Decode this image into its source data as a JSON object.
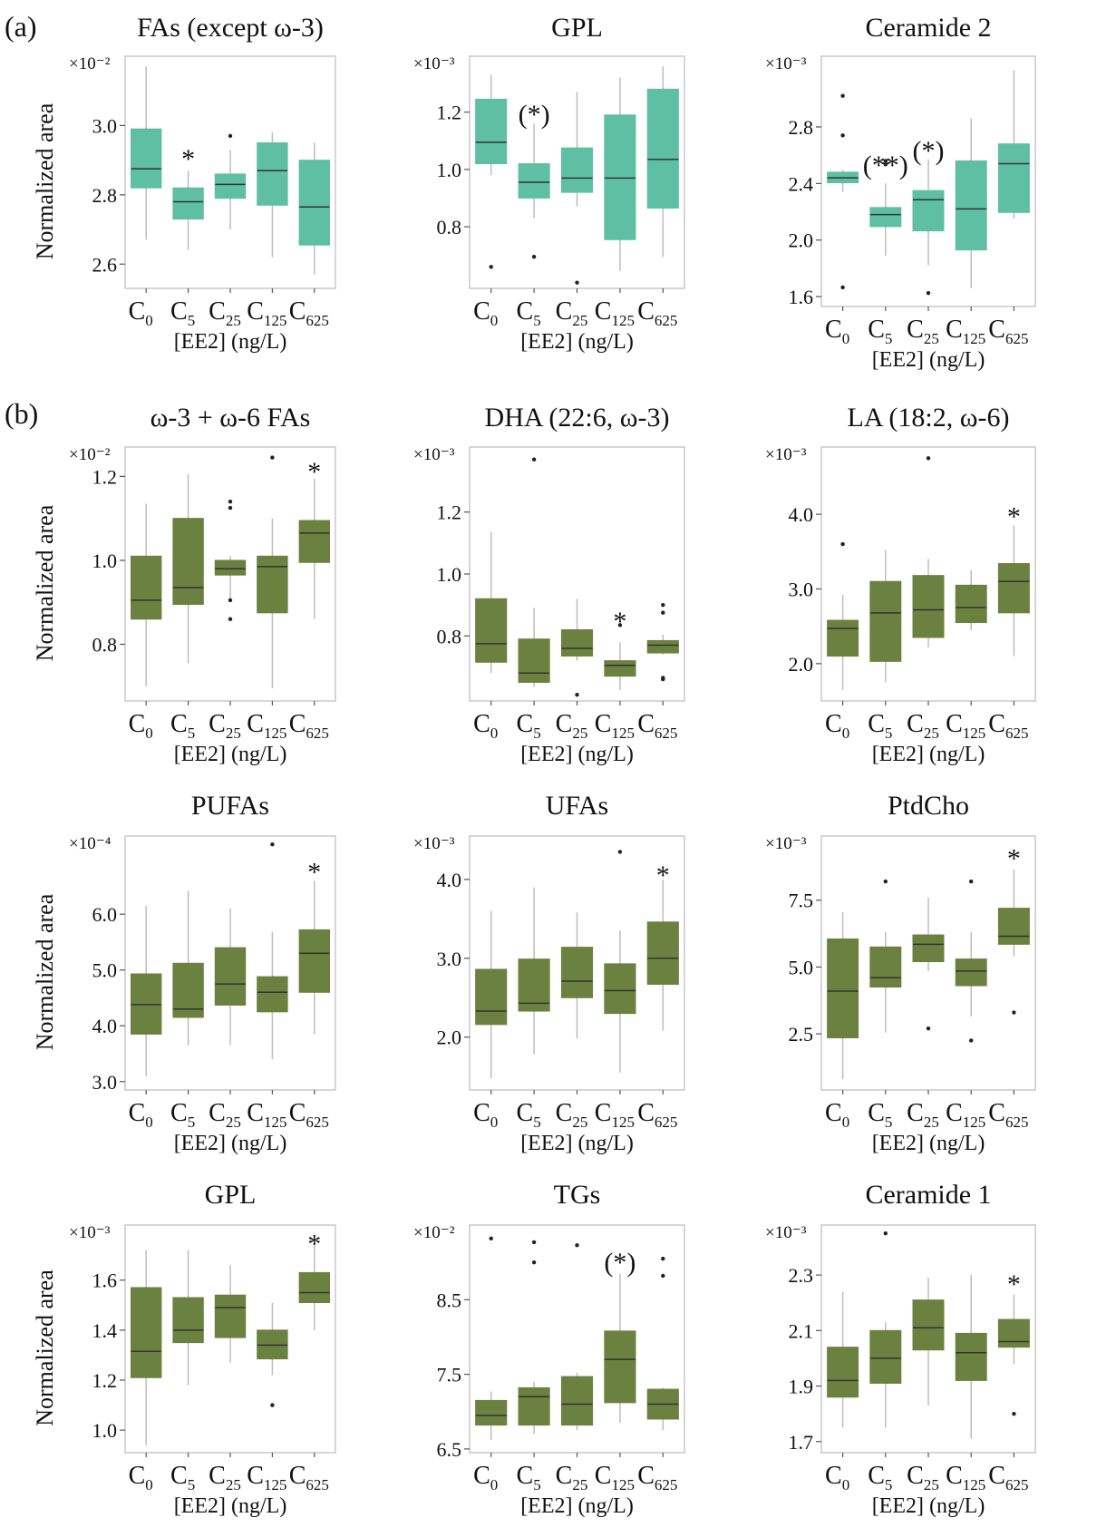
{
  "figure": {
    "panel_labels": [
      "(a)",
      "(b)"
    ]
  },
  "style": {
    "color_a": "#5fbfa3",
    "color_b": "#6b8140",
    "whisker": "#bdbdbd",
    "frame": "#c8c8c8",
    "median": "#333333"
  },
  "chart_data": [
    {
      "type": "box",
      "panel": "(a)",
      "title": "FAs (except ω-3)",
      "exponent": "×10⁻²",
      "ylabel": "Normalized area",
      "xlabel": "[EE2] (ng/L)",
      "categories": [
        "C0",
        "C5",
        "C25",
        "C125",
        "C625"
      ],
      "yticks": [
        "2.6",
        "2.8",
        "3.0"
      ],
      "ytick_values": [
        2.6,
        2.8,
        3.0
      ],
      "ylim": [
        2.53,
        3.2
      ],
      "boxes": [
        {
          "whisker_low": 2.67,
          "q1": 2.82,
          "median": 2.875,
          "q3": 2.99,
          "whisker_high": 3.17,
          "outliers": []
        },
        {
          "whisker_low": 2.64,
          "q1": 2.73,
          "median": 2.78,
          "q3": 2.82,
          "whisker_high": 2.87,
          "outliers": []
        },
        {
          "whisker_low": 2.7,
          "q1": 2.79,
          "median": 2.83,
          "q3": 2.86,
          "whisker_high": 2.93,
          "outliers": [
            2.97
          ]
        },
        {
          "whisker_low": 2.62,
          "q1": 2.77,
          "median": 2.87,
          "q3": 2.95,
          "whisker_high": 2.98,
          "outliers": []
        },
        {
          "whisker_low": 2.57,
          "q1": 2.655,
          "median": 2.765,
          "q3": 2.9,
          "whisker_high": 2.95,
          "outliers": []
        }
      ],
      "annotations": [
        {
          "category": 1,
          "text": "*",
          "y": 2.915
        }
      ]
    },
    {
      "type": "box",
      "panel": "(a)",
      "title": "GPL",
      "exponent": "×10⁻³",
      "ylabel": "",
      "xlabel": "[EE2] (ng/L)",
      "categories": [
        "C0",
        "C5",
        "C25",
        "C125",
        "C625"
      ],
      "yticks": [
        "0.8",
        "1.0",
        "1.2"
      ],
      "ytick_values": [
        0.8,
        1.0,
        1.2
      ],
      "ylim": [
        0.585,
        1.395
      ],
      "boxes": [
        {
          "whisker_low": 0.98,
          "q1": 1.02,
          "median": 1.095,
          "q3": 1.245,
          "whisker_high": 1.33,
          "outliers": [
            0.66
          ]
        },
        {
          "whisker_low": 0.83,
          "q1": 0.9,
          "median": 0.955,
          "q3": 1.02,
          "whisker_high": 1.16,
          "outliers": [
            0.695
          ]
        },
        {
          "whisker_low": 0.87,
          "q1": 0.92,
          "median": 0.97,
          "q3": 1.075,
          "whisker_high": 1.27,
          "outliers": [
            0.605
          ]
        },
        {
          "whisker_low": 0.645,
          "q1": 0.755,
          "median": 0.97,
          "q3": 1.19,
          "whisker_high": 1.32,
          "outliers": []
        },
        {
          "whisker_low": 0.695,
          "q1": 0.865,
          "median": 1.035,
          "q3": 1.28,
          "whisker_high": 1.36,
          "outliers": []
        }
      ],
      "annotations": [
        {
          "category": 1,
          "text": "(*)",
          "y": 1.205
        }
      ]
    },
    {
      "type": "box",
      "panel": "(a)",
      "title": "Ceramide 2",
      "exponent": "×10⁻³",
      "ylabel": "",
      "xlabel": "[EE2] (ng/L)",
      "categories": [
        "C0",
        "C5",
        "C25",
        "C125",
        "C625"
      ],
      "yticks": [
        "1.6",
        "2.0",
        "2.4",
        "2.8"
      ],
      "ytick_values": [
        1.6,
        2.0,
        2.4,
        2.8
      ],
      "ylim": [
        1.53,
        3.3
      ],
      "boxes": [
        {
          "whisker_low": 2.34,
          "q1": 2.405,
          "median": 2.44,
          "q3": 2.48,
          "whisker_high": 2.5,
          "outliers": [
            3.02,
            2.74,
            1.665
          ]
        },
        {
          "whisker_low": 1.89,
          "q1": 2.095,
          "median": 2.18,
          "q3": 2.23,
          "whisker_high": 2.4,
          "outliers": [
            2.56,
            2.535
          ]
        },
        {
          "whisker_low": 1.82,
          "q1": 2.065,
          "median": 2.285,
          "q3": 2.35,
          "whisker_high": 2.57,
          "outliers": [
            1.625
          ]
        },
        {
          "whisker_low": 1.66,
          "q1": 1.93,
          "median": 2.22,
          "q3": 2.56,
          "whisker_high": 2.86,
          "outliers": []
        },
        {
          "whisker_low": 2.15,
          "q1": 2.195,
          "median": 2.54,
          "q3": 2.68,
          "whisker_high": 3.2,
          "outliers": []
        }
      ],
      "annotations": [
        {
          "category": 1,
          "text": "(**)",
          "y": 2.555
        },
        {
          "category": 2,
          "text": "(*)",
          "y": 2.66
        }
      ]
    },
    {
      "type": "box",
      "panel": "(b)",
      "title": "ω-3 + ω-6 FAs",
      "exponent": "×10⁻²",
      "ylabel": "Normalized area",
      "xlabel": "[EE2] (ng/L)",
      "categories": [
        "C0",
        "C5",
        "C25",
        "C125",
        "C625"
      ],
      "yticks": [
        "0.8",
        "1.0",
        "1.2"
      ],
      "ytick_values": [
        0.8,
        1.0,
        1.2
      ],
      "ylim": [
        0.665,
        1.27
      ],
      "boxes": [
        {
          "whisker_low": 0.7,
          "q1": 0.86,
          "median": 0.905,
          "q3": 1.01,
          "whisker_high": 1.135,
          "outliers": []
        },
        {
          "whisker_low": 0.755,
          "q1": 0.895,
          "median": 0.935,
          "q3": 1.1,
          "whisker_high": 1.205,
          "outliers": []
        },
        {
          "whisker_low": 0.905,
          "q1": 0.965,
          "median": 0.98,
          "q3": 1.0,
          "whisker_high": 1.01,
          "outliers": [
            1.14,
            1.125,
            0.905,
            0.86
          ]
        },
        {
          "whisker_low": 0.695,
          "q1": 0.875,
          "median": 0.985,
          "q3": 1.01,
          "whisker_high": 1.1,
          "outliers": [
            1.245
          ]
        },
        {
          "whisker_low": 0.86,
          "q1": 0.995,
          "median": 1.065,
          "q3": 1.095,
          "whisker_high": 1.195,
          "outliers": []
        }
      ],
      "annotations": [
        {
          "category": 4,
          "text": "*",
          "y": 1.22
        }
      ]
    },
    {
      "type": "box",
      "panel": "(b)",
      "title": "DHA (22:6, ω-3)",
      "exponent": "×10⁻³",
      "ylabel": "",
      "xlabel": "[EE2] (ng/L)",
      "categories": [
        "C0",
        "C5",
        "C25",
        "C125",
        "C625"
      ],
      "yticks": [
        "0.8",
        "1.0",
        "1.2"
      ],
      "ytick_values": [
        0.8,
        1.0,
        1.2
      ],
      "ylim": [
        0.59,
        1.41
      ],
      "boxes": [
        {
          "whisker_low": 0.68,
          "q1": 0.715,
          "median": 0.775,
          "q3": 0.92,
          "whisker_high": 1.135,
          "outliers": []
        },
        {
          "whisker_low": 0.635,
          "q1": 0.65,
          "median": 0.68,
          "q3": 0.79,
          "whisker_high": 0.89,
          "outliers": [
            1.37
          ]
        },
        {
          "whisker_low": 0.72,
          "q1": 0.735,
          "median": 0.76,
          "q3": 0.82,
          "whisker_high": 0.92,
          "outliers": [
            0.61
          ]
        },
        {
          "whisker_low": 0.625,
          "q1": 0.67,
          "median": 0.705,
          "q3": 0.72,
          "whisker_high": 0.78,
          "outliers": [
            0.835
          ]
        },
        {
          "whisker_low": 0.74,
          "q1": 0.745,
          "median": 0.77,
          "q3": 0.785,
          "whisker_high": 0.805,
          "outliers": [
            0.9,
            0.875,
            0.665,
            0.66
          ]
        }
      ],
      "annotations": [
        {
          "category": 3,
          "text": "*",
          "y": 0.86
        }
      ]
    },
    {
      "type": "box",
      "panel": "(b)",
      "title": "LA (18:2, ω-6)",
      "exponent": "×10⁻³",
      "ylabel": "",
      "xlabel": "[EE2] (ng/L)",
      "categories": [
        "C0",
        "C5",
        "C25",
        "C125",
        "C625"
      ],
      "yticks": [
        "2.0",
        "3.0",
        "4.0"
      ],
      "ytick_values": [
        2.0,
        3.0,
        4.0
      ],
      "ylim": [
        1.5,
        4.9
      ],
      "boxes": [
        {
          "whisker_low": 1.65,
          "q1": 2.1,
          "median": 2.47,
          "q3": 2.58,
          "whisker_high": 2.92,
          "outliers": [
            3.6
          ]
        },
        {
          "whisker_low": 1.75,
          "q1": 2.03,
          "median": 2.68,
          "q3": 3.1,
          "whisker_high": 3.52,
          "outliers": []
        },
        {
          "whisker_low": 2.22,
          "q1": 2.35,
          "median": 2.72,
          "q3": 3.18,
          "whisker_high": 3.4,
          "outliers": [
            4.75
          ]
        },
        {
          "whisker_low": 2.45,
          "q1": 2.55,
          "median": 2.75,
          "q3": 3.05,
          "whisker_high": 3.25,
          "outliers": []
        },
        {
          "whisker_low": 2.1,
          "q1": 2.68,
          "median": 3.1,
          "q3": 3.34,
          "whisker_high": 3.85,
          "outliers": []
        }
      ],
      "annotations": [
        {
          "category": 4,
          "text": "*",
          "y": 4.02
        }
      ]
    },
    {
      "type": "box",
      "panel": "(b)",
      "title": "PUFAs",
      "exponent": "×10⁻⁴",
      "ylabel": "Normalized area",
      "xlabel": "[EE2] (ng/L)",
      "categories": [
        "C0",
        "C5",
        "C25",
        "C125",
        "C625"
      ],
      "yticks": [
        "3.0",
        "4.0",
        "5.0",
        "6.0"
      ],
      "ytick_values": [
        3.0,
        4.0,
        5.0,
        6.0
      ],
      "ylim": [
        2.85,
        7.4
      ],
      "boxes": [
        {
          "whisker_low": 3.1,
          "q1": 3.85,
          "median": 4.38,
          "q3": 4.93,
          "whisker_high": 6.15,
          "outliers": []
        },
        {
          "whisker_low": 3.65,
          "q1": 4.15,
          "median": 4.3,
          "q3": 5.12,
          "whisker_high": 6.42,
          "outliers": []
        },
        {
          "whisker_low": 3.65,
          "q1": 4.37,
          "median": 4.75,
          "q3": 5.4,
          "whisker_high": 6.1,
          "outliers": []
        },
        {
          "whisker_low": 3.4,
          "q1": 4.25,
          "median": 4.6,
          "q3": 4.88,
          "whisker_high": 5.68,
          "outliers": [
            7.25
          ]
        },
        {
          "whisker_low": 3.85,
          "q1": 4.6,
          "median": 5.3,
          "q3": 5.72,
          "whisker_high": 6.6,
          "outliers": []
        }
      ],
      "annotations": [
        {
          "category": 4,
          "text": "*",
          "y": 6.82
        }
      ]
    },
    {
      "type": "box",
      "panel": "(b)",
      "title": "UFAs",
      "exponent": "×10⁻³",
      "ylabel": "",
      "xlabel": "[EE2] (ng/L)",
      "categories": [
        "C0",
        "C5",
        "C25",
        "C125",
        "C625"
      ],
      "yticks": [
        "2.0",
        "3.0",
        "4.0"
      ],
      "ytick_values": [
        2.0,
        3.0,
        4.0
      ],
      "ylim": [
        1.33,
        4.55
      ],
      "boxes": [
        {
          "whisker_low": 1.48,
          "q1": 2.16,
          "median": 2.33,
          "q3": 2.86,
          "whisker_high": 3.6,
          "outliers": []
        },
        {
          "whisker_low": 1.78,
          "q1": 2.33,
          "median": 2.43,
          "q3": 2.99,
          "whisker_high": 3.9,
          "outliers": []
        },
        {
          "whisker_low": 1.98,
          "q1": 2.5,
          "median": 2.71,
          "q3": 3.14,
          "whisker_high": 3.58,
          "outliers": []
        },
        {
          "whisker_low": 1.55,
          "q1": 2.3,
          "median": 2.59,
          "q3": 2.93,
          "whisker_high": 3.35,
          "outliers": [
            4.35
          ]
        },
        {
          "whisker_low": 2.08,
          "q1": 2.67,
          "median": 3.0,
          "q3": 3.46,
          "whisker_high": 4.0,
          "outliers": []
        }
      ],
      "annotations": [
        {
          "category": 4,
          "text": "*",
          "y": 4.1
        }
      ]
    },
    {
      "type": "box",
      "panel": "(b)",
      "title": "PtdCho",
      "exponent": "×10⁻³",
      "ylabel": "",
      "xlabel": "[EE2] (ng/L)",
      "categories": [
        "C0",
        "C5",
        "C25",
        "C125",
        "C625"
      ],
      "yticks": [
        "2.5",
        "5.0",
        "7.5"
      ],
      "ytick_values": [
        2.5,
        5.0,
        7.5
      ],
      "ylim": [
        0.4,
        9.9
      ],
      "boxes": [
        {
          "whisker_low": 0.8,
          "q1": 2.35,
          "median": 4.1,
          "q3": 6.05,
          "whisker_high": 7.05,
          "outliers": []
        },
        {
          "whisker_low": 2.55,
          "q1": 4.25,
          "median": 4.6,
          "q3": 5.75,
          "whisker_high": 6.3,
          "outliers": [
            8.2
          ]
        },
        {
          "whisker_low": 4.85,
          "q1": 5.2,
          "median": 5.85,
          "q3": 6.2,
          "whisker_high": 7.6,
          "outliers": [
            2.7
          ]
        },
        {
          "whisker_low": 3.15,
          "q1": 4.3,
          "median": 4.85,
          "q3": 5.3,
          "whisker_high": 6.3,
          "outliers": [
            8.2,
            2.25
          ]
        },
        {
          "whisker_low": 5.4,
          "q1": 5.85,
          "median": 6.15,
          "q3": 7.2,
          "whisker_high": 8.65,
          "outliers": [
            3.3
          ]
        }
      ],
      "annotations": [
        {
          "category": 4,
          "text": "*",
          "y": 9.2
        }
      ]
    },
    {
      "type": "box",
      "panel": "(b)",
      "title": "GPL",
      "exponent": "×10⁻³",
      "ylabel": "Normalized area",
      "xlabel": "[EE2] (ng/L)",
      "categories": [
        "C0",
        "C5",
        "C25",
        "C125",
        "C625"
      ],
      "yticks": [
        "1.0",
        "1.2",
        "1.4",
        "1.6"
      ],
      "ytick_values": [
        1.0,
        1.2,
        1.4,
        1.6
      ],
      "ylim": [
        0.91,
        1.82
      ],
      "boxes": [
        {
          "whisker_low": 0.94,
          "q1": 1.21,
          "median": 1.315,
          "q3": 1.57,
          "whisker_high": 1.72,
          "outliers": []
        },
        {
          "whisker_low": 1.18,
          "q1": 1.35,
          "median": 1.4,
          "q3": 1.53,
          "whisker_high": 1.72,
          "outliers": []
        },
        {
          "whisker_low": 1.27,
          "q1": 1.37,
          "median": 1.49,
          "q3": 1.54,
          "whisker_high": 1.66,
          "outliers": []
        },
        {
          "whisker_low": 1.22,
          "q1": 1.285,
          "median": 1.34,
          "q3": 1.4,
          "whisker_high": 1.51,
          "outliers": [
            1.1
          ]
        },
        {
          "whisker_low": 1.4,
          "q1": 1.51,
          "median": 1.55,
          "q3": 1.63,
          "whisker_high": 1.74,
          "outliers": []
        }
      ],
      "annotations": [
        {
          "category": 4,
          "text": "*",
          "y": 1.76
        }
      ]
    },
    {
      "type": "box",
      "panel": "(b)",
      "title": "TGs",
      "exponent": "×10⁻²",
      "ylabel": "",
      "xlabel": "[EE2] (ng/L)",
      "categories": [
        "C0",
        "C5",
        "C25",
        "C125",
        "C625"
      ],
      "yticks": [
        "6.5",
        "7.5",
        "8.5"
      ],
      "ytick_values": [
        6.5,
        7.5,
        8.5
      ],
      "ylim": [
        6.45,
        9.5
      ],
      "boxes": [
        {
          "whisker_low": 6.62,
          "q1": 6.82,
          "median": 6.95,
          "q3": 7.15,
          "whisker_high": 7.27,
          "outliers": [
            9.32
          ]
        },
        {
          "whisker_low": 6.7,
          "q1": 6.82,
          "median": 7.2,
          "q3": 7.32,
          "whisker_high": 7.4,
          "outliers": [
            9.27,
            9.0
          ]
        },
        {
          "whisker_low": 6.75,
          "q1": 6.82,
          "median": 7.1,
          "q3": 7.47,
          "whisker_high": 7.52,
          "outliers": [
            9.23
          ]
        },
        {
          "whisker_low": 6.85,
          "q1": 7.12,
          "median": 7.7,
          "q3": 8.08,
          "whisker_high": 8.85,
          "outliers": []
        },
        {
          "whisker_low": 6.75,
          "q1": 6.9,
          "median": 7.1,
          "q3": 7.3,
          "whisker_high": 7.32,
          "outliers": [
            9.05,
            8.82
          ]
        }
      ],
      "annotations": [
        {
          "category": 3,
          "text": "(*)",
          "y": 9.05
        }
      ]
    },
    {
      "type": "box",
      "panel": "(b)",
      "title": "Ceramide 1",
      "exponent": "×10⁻³",
      "ylabel": "",
      "xlabel": "[EE2] (ng/L)",
      "categories": [
        "C0",
        "C5",
        "C25",
        "C125",
        "C625"
      ],
      "yticks": [
        "1.7",
        "1.9",
        "2.1",
        "2.3"
      ],
      "ytick_values": [
        1.7,
        1.9,
        2.1,
        2.3
      ],
      "ylim": [
        1.66,
        2.48
      ],
      "boxes": [
        {
          "whisker_low": 1.75,
          "q1": 1.86,
          "median": 1.92,
          "q3": 2.04,
          "whisker_high": 2.24,
          "outliers": []
        },
        {
          "whisker_low": 1.75,
          "q1": 1.91,
          "median": 2.0,
          "q3": 2.1,
          "whisker_high": 2.13,
          "outliers": [
            2.45
          ]
        },
        {
          "whisker_low": 1.83,
          "q1": 2.03,
          "median": 2.11,
          "q3": 2.21,
          "whisker_high": 2.29,
          "outliers": []
        },
        {
          "whisker_low": 1.71,
          "q1": 1.92,
          "median": 2.02,
          "q3": 2.09,
          "whisker_high": 2.3,
          "outliers": []
        },
        {
          "whisker_low": 1.98,
          "q1": 2.04,
          "median": 2.06,
          "q3": 2.14,
          "whisker_high": 2.23,
          "outliers": [
            1.8
          ]
        }
      ],
      "annotations": [
        {
          "category": 4,
          "text": "*",
          "y": 2.28
        }
      ]
    }
  ]
}
